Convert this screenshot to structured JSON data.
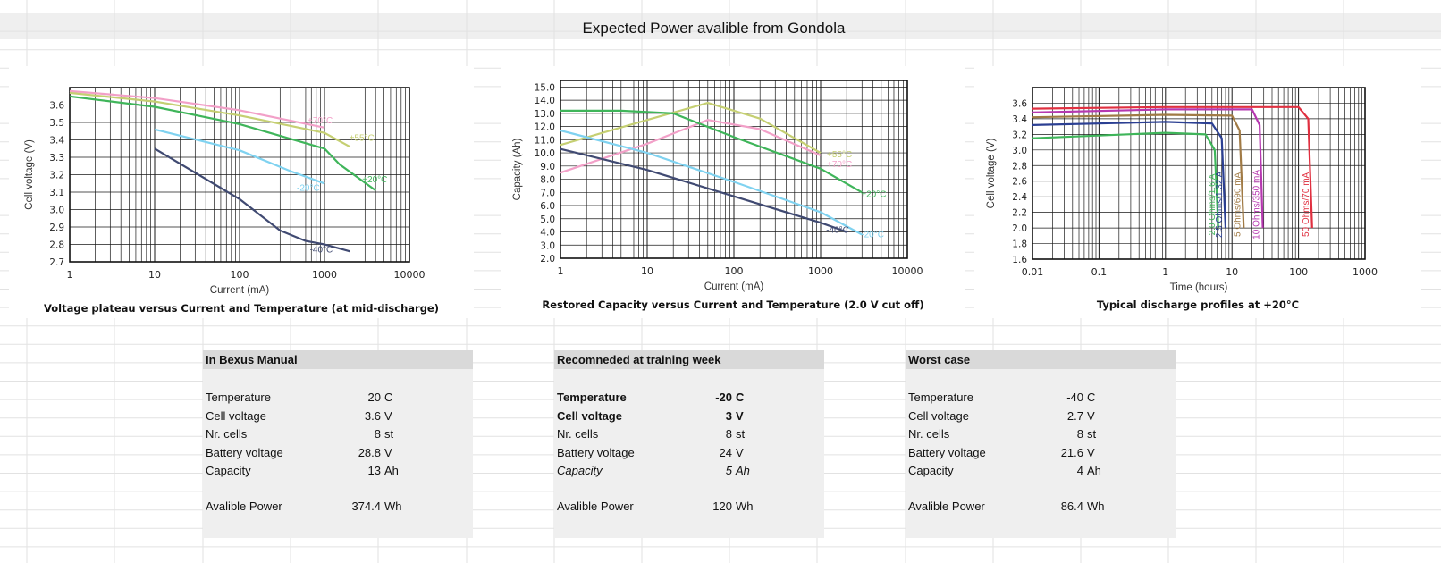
{
  "sheet_title": "Expected Power avalible from Gondola",
  "chart_data": [
    {
      "type": "line",
      "title": "Voltage plateau versus Current and Temperature (at mid-discharge)",
      "xlabel": "Current (mA)",
      "ylabel": "Cell voltage (V)",
      "x_scale": "log",
      "xlim": [
        1,
        10000
      ],
      "ylim": [
        2.7,
        3.7
      ],
      "x_ticks": [
        "1",
        "10",
        "100",
        "1000",
        "10000"
      ],
      "y_ticks": [
        "2.7",
        "2.8",
        "2.9",
        "3.0",
        "3.1",
        "3.2",
        "3.3",
        "3.4",
        "3.5",
        "3.6"
      ],
      "grid": true,
      "series": [
        {
          "name": "+70°C",
          "color": "#f2a0c8",
          "x": [
            1,
            10,
            100,
            400,
            1000
          ],
          "y": [
            3.68,
            3.64,
            3.57,
            3.51,
            3.47
          ]
        },
        {
          "name": "+55°C",
          "color": "#c5cf72",
          "x": [
            1,
            10,
            100,
            1000,
            2000
          ],
          "y": [
            3.67,
            3.62,
            3.54,
            3.44,
            3.36
          ]
        },
        {
          "name": "+20°C",
          "color": "#3fb55a",
          "x": [
            1,
            10,
            100,
            1000,
            1500,
            4000
          ],
          "y": [
            3.65,
            3.59,
            3.49,
            3.35,
            3.26,
            3.11
          ]
        },
        {
          "name": "-20°C",
          "color": "#7fd2f0",
          "x": [
            10,
            100,
            400,
            1000
          ],
          "y": [
            3.46,
            3.34,
            3.22,
            3.15
          ]
        },
        {
          "name": "-40°C",
          "color": "#404a72",
          "x": [
            10,
            100,
            300,
            600,
            1000,
            2000
          ],
          "y": [
            3.35,
            3.06,
            2.88,
            2.82,
            2.8,
            2.76
          ]
        }
      ]
    },
    {
      "type": "line",
      "title": "Restored Capacity versus Current and Temperature (2.0 V cut off)",
      "xlabel": "Current (mA)",
      "ylabel": "Capacity (Ah)",
      "x_scale": "log",
      "xlim": [
        1,
        10000
      ],
      "ylim": [
        2.0,
        15.5
      ],
      "x_ticks": [
        "1",
        "10",
        "100",
        "1000",
        "10000"
      ],
      "y_ticks": [
        "2.0",
        "3.0",
        "4.0",
        "5.0",
        "6.0",
        "7.0",
        "8.0",
        "9.0",
        "10.0",
        "11.0",
        "12.0",
        "13.0",
        "14.0",
        "15.0"
      ],
      "grid": true,
      "series": [
        {
          "name": "+55°C",
          "color": "#c5cf72",
          "x": [
            1,
            10,
            50,
            200,
            1000
          ],
          "y": [
            10.6,
            12.5,
            13.8,
            12.6,
            10.0
          ]
        },
        {
          "name": "+70°C",
          "color": "#f2a0c8",
          "x": [
            1,
            10,
            50,
            200,
            1000
          ],
          "y": [
            8.5,
            10.7,
            12.5,
            11.8,
            9.8
          ]
        },
        {
          "name": "+20°C",
          "color": "#3fb55a",
          "x": [
            1,
            5,
            20,
            100,
            1000,
            3000
          ],
          "y": [
            13.2,
            13.2,
            13.0,
            11.2,
            8.8,
            7.0
          ]
        },
        {
          "name": "-20°C",
          "color": "#7fd2f0",
          "x": [
            1,
            10,
            100,
            1000,
            3000
          ],
          "y": [
            11.7,
            10.0,
            7.8,
            5.5,
            3.8
          ]
        },
        {
          "name": "-40°C",
          "color": "#404a72",
          "x": [
            1,
            10,
            100,
            1000,
            2000
          ],
          "y": [
            10.3,
            8.7,
            6.7,
            4.7,
            4.0
          ]
        }
      ]
    },
    {
      "type": "line",
      "title": "Typical discharge profiles at +20°C",
      "xlabel": "Time (hours)",
      "ylabel": "Cell voltage (V)",
      "x_scale": "log",
      "xlim": [
        0.01,
        1000
      ],
      "ylim": [
        1.6,
        3.8
      ],
      "x_ticks": [
        "0.01",
        "0.1",
        "1",
        "10",
        "100",
        "1000"
      ],
      "y_ticks": [
        "1.6",
        "1.8",
        "2.0",
        "2.2",
        "2.4",
        "2.6",
        "2.8",
        "3.0",
        "3.2",
        "3.4",
        "3.6"
      ],
      "grid": true,
      "series": [
        {
          "name": "2.0 Ohms/1.6 A",
          "color": "#3fb55a",
          "x": [
            0.01,
            1,
            4,
            5.5,
            6.2
          ],
          "y": [
            3.15,
            3.22,
            3.2,
            3.0,
            2.0
          ]
        },
        {
          "name": "2.5 Ohms/1.32 A",
          "color": "#2b3f92",
          "x": [
            0.01,
            1,
            5,
            7,
            8
          ],
          "y": [
            3.32,
            3.36,
            3.34,
            3.15,
            2.0
          ]
        },
        {
          "name": "5 Ohms/690 mA",
          "color": "#a07a45",
          "x": [
            0.01,
            1,
            10,
            13,
            15
          ],
          "y": [
            3.42,
            3.45,
            3.44,
            3.25,
            2.0
          ]
        },
        {
          "name": "10 Ohms/350 mA",
          "color": "#b638b0",
          "x": [
            0.01,
            1,
            20,
            26,
            29
          ],
          "y": [
            3.48,
            3.52,
            3.52,
            3.32,
            2.0
          ]
        },
        {
          "name": "50 Ohms/70 mA",
          "color": "#e03040",
          "x": [
            0.01,
            1,
            100,
            140,
            160
          ],
          "y": [
            3.53,
            3.55,
            3.55,
            3.4,
            2.0
          ]
        }
      ]
    }
  ],
  "tables": [
    {
      "header": "In Bexus Manual",
      "rows": [
        {
          "label": "Temperature",
          "value": "20",
          "unit": "C"
        },
        {
          "label": "Cell voltage",
          "value": "3.6",
          "unit": "V"
        },
        {
          "label": "Nr. cells",
          "value": "8",
          "unit": "st"
        },
        {
          "label": "Battery voltage",
          "value": "28.8",
          "unit": "V"
        },
        {
          "label": "Capacity",
          "value": "13",
          "unit": "Ah"
        }
      ],
      "power": {
        "label": "Avalible Power",
        "value": "374.4",
        "unit": "Wh"
      }
    },
    {
      "header": "Recomneded at training week",
      "rows": [
        {
          "label": "Temperature",
          "value": "-20",
          "unit": "C"
        },
        {
          "label": "Cell voltage",
          "value": "3",
          "unit": "V"
        },
        {
          "label": "Nr. cells",
          "value": "8",
          "unit": "st"
        },
        {
          "label": "Battery voltage",
          "value": "24",
          "unit": "V"
        },
        {
          "label": "Capacity",
          "value": "5",
          "unit": "Ah"
        }
      ],
      "power": {
        "label": "Avalible Power",
        "value": "120",
        "unit": "Wh"
      }
    },
    {
      "header": "Worst case",
      "rows": [
        {
          "label": "Temperature",
          "value": "-40",
          "unit": "C"
        },
        {
          "label": "Cell voltage",
          "value": "2.7",
          "unit": "V"
        },
        {
          "label": "Nr. cells",
          "value": "8",
          "unit": "st"
        },
        {
          "label": "Battery voltage",
          "value": "21.6",
          "unit": "V"
        },
        {
          "label": "Capacity",
          "value": "4",
          "unit": "Ah"
        }
      ],
      "power": {
        "label": "Avalible Power",
        "value": "86.4",
        "unit": "Wh"
      }
    }
  ]
}
